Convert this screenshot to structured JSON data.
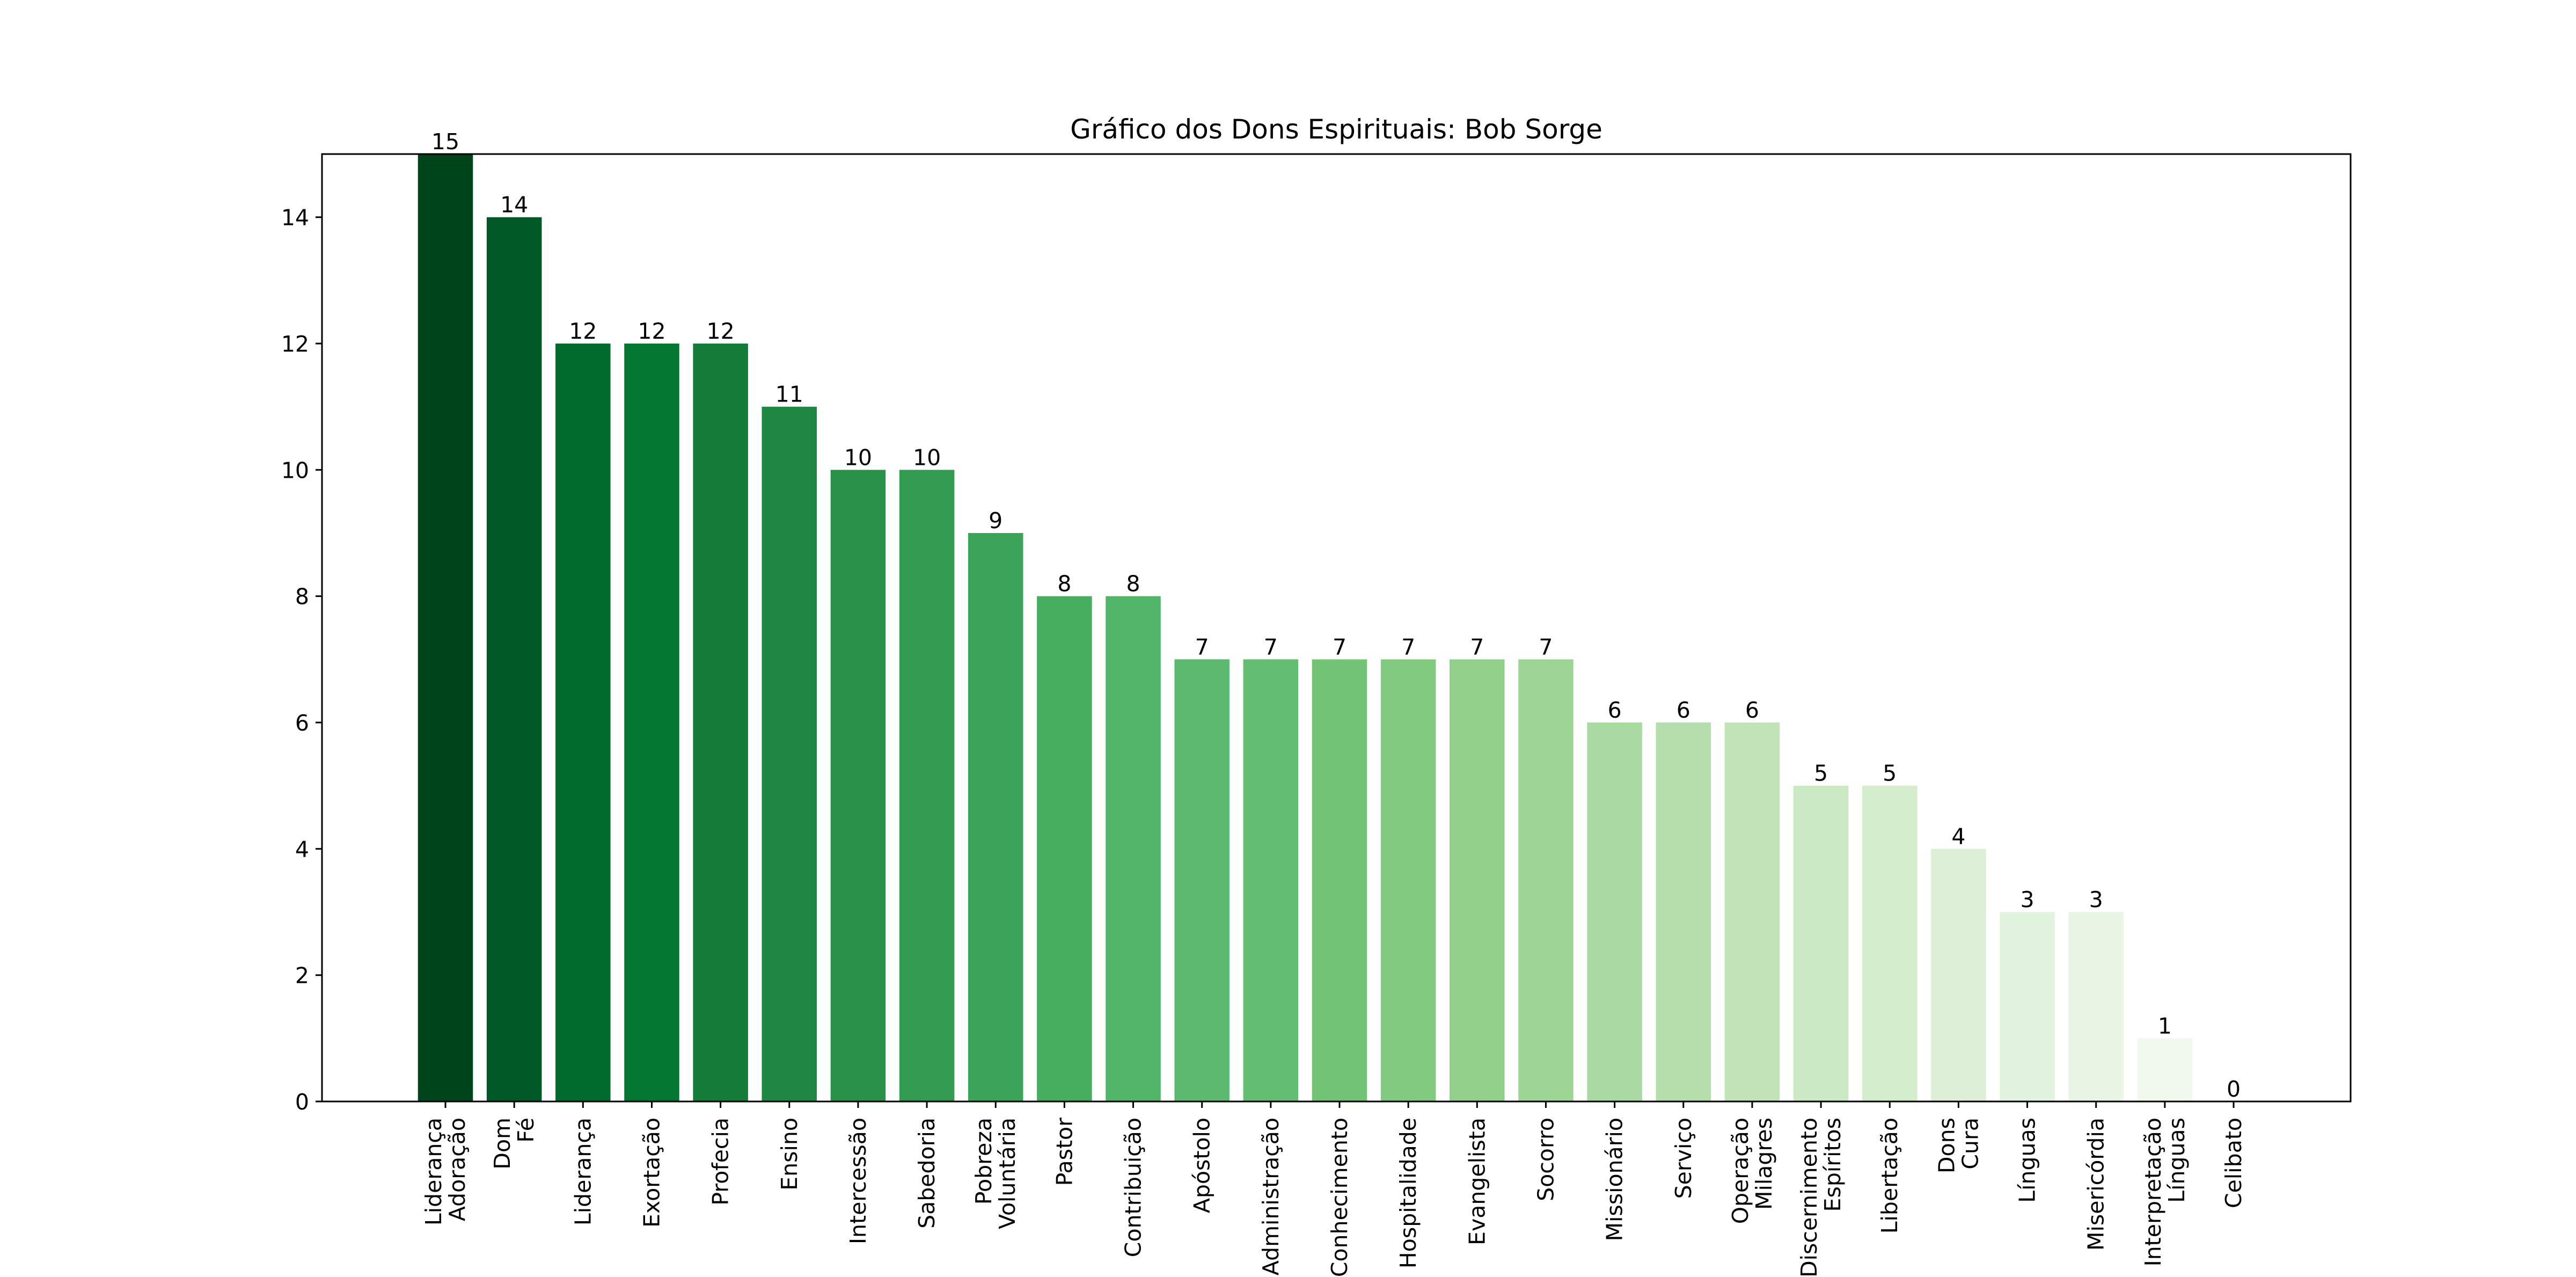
{
  "chart_data": {
    "type": "bar",
    "title": "Gráfico dos Dons Espirituais: Bob Sorge",
    "xlabel": "",
    "ylabel": "",
    "ylim": [
      0,
      15
    ],
    "yticks": [
      0,
      2,
      4,
      6,
      8,
      10,
      12,
      14
    ],
    "grid": false,
    "legend": "none",
    "colormap": "green gradient, dark to light by rank",
    "categories": [
      "Liderança\nAdoração",
      "Dom\nFé",
      "Liderança",
      "Exortação",
      "Profecia",
      "Ensino",
      "Intercessão",
      "Sabedoria",
      "Pobreza\nVoluntária",
      "Pastor",
      "Contribuição",
      "Apóstolo",
      "Administração",
      "Conhecimento",
      "Hospitalidade",
      "Evangelista",
      "Socorro",
      "Missionário",
      "Serviço",
      "Operação\nMilagres",
      "Discernimento\nEspíritos",
      "Libertação",
      "Dons\nCura",
      "Línguas",
      "Misericórdia",
      "Interpretação\nLínguas",
      "Celibato"
    ],
    "values": [
      15,
      14,
      12,
      12,
      12,
      11,
      10,
      10,
      9,
      8,
      8,
      7,
      7,
      7,
      7,
      7,
      7,
      6,
      6,
      6,
      5,
      5,
      4,
      3,
      3,
      1,
      0
    ],
    "colors": [
      "#00441b",
      "#005924",
      "#006a2d",
      "#047733",
      "#137d39",
      "#1f8742",
      "#28924a",
      "#329b51",
      "#3ba458",
      "#47ae60",
      "#52b66a",
      "#5bba6f",
      "#64be71",
      "#73c476",
      "#82ca80",
      "#90d08a",
      "#9dd596",
      "#a8daa1",
      "#b4deac",
      "#c0e4b8",
      "#cbe9c3",
      "#d4edcd",
      "#dbf0d6",
      "#e3f4de",
      "#e9f6e5",
      "#f0f9ec",
      "#f7fcf5"
    ]
  }
}
